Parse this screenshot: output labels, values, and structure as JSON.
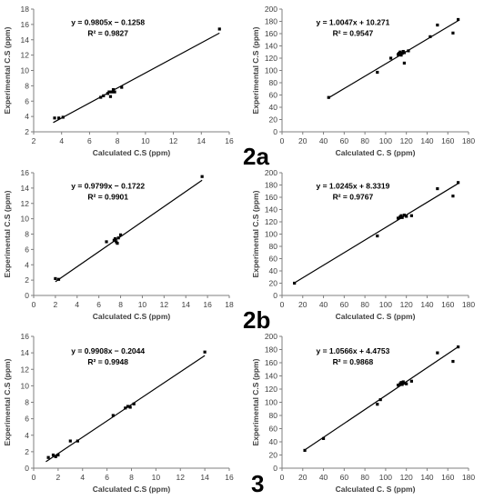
{
  "panel_labels": [
    "2a",
    "2b",
    "3"
  ],
  "chart_data": [
    {
      "type": "scatter",
      "title": "",
      "xlabel": "Calculated C.S (ppm)",
      "ylabel": "Experimental C.S (ppm)",
      "xlim": [
        2,
        16
      ],
      "ylim": [
        2,
        18
      ],
      "xticks": [
        2,
        4,
        6,
        8,
        10,
        12,
        14,
        16
      ],
      "yticks": [
        2,
        4,
        6,
        8,
        10,
        12,
        14,
        16,
        18
      ],
      "equation": "y = 0.9805x − 0.1258",
      "r2": "R² = 0.9827",
      "fit": {
        "slope": 0.9805,
        "intercept": -0.1258,
        "x_range": [
          3.4,
          15.3
        ]
      },
      "grid": false,
      "legend": "none",
      "series": [
        {
          "x": [
            3.5,
            3.8,
            4.1,
            6.8,
            7.0,
            7.3,
            7.4,
            7.5,
            7.6,
            7.8,
            7.7,
            8.3,
            15.3
          ],
          "y": [
            3.8,
            3.8,
            3.9,
            6.5,
            6.7,
            7.0,
            7.2,
            6.6,
            7.2,
            7.2,
            7.5,
            7.8,
            15.4
          ]
        }
      ]
    },
    {
      "type": "scatter",
      "title": "",
      "xlabel": "Calculated C. S (ppm)",
      "ylabel": "Experimental C.S (ppm)",
      "xlim": [
        0,
        180
      ],
      "ylim": [
        0,
        200
      ],
      "xticks": [
        0,
        20,
        40,
        60,
        80,
        100,
        120,
        140,
        160,
        180
      ],
      "yticks": [
        0,
        20,
        40,
        60,
        80,
        100,
        120,
        140,
        160,
        180,
        200
      ],
      "equation": "y = 1.0047x + 10.271",
      "r2": "R² = 0.9547",
      "fit": {
        "slope": 1.0047,
        "intercept": 10.271,
        "x_range": [
          45,
          170
        ]
      },
      "grid": false,
      "legend": "none",
      "series": [
        {
          "x": [
            45,
            92,
            105,
            112,
            113,
            114,
            115,
            116,
            117,
            118,
            118,
            122,
            143,
            150,
            165,
            170
          ],
          "y": [
            56,
            97,
            120,
            126,
            128,
            130,
            125,
            128,
            131,
            112,
            129,
            132,
            155,
            174,
            161,
            183
          ]
        }
      ]
    },
    {
      "type": "scatter",
      "title": "",
      "xlabel": "Calculated C.S (ppm)",
      "ylabel": "Experimental C.S (ppm)",
      "xlim": [
        0,
        18
      ],
      "ylim": [
        0,
        16
      ],
      "xticks": [
        0,
        2,
        4,
        6,
        8,
        10,
        12,
        14,
        16,
        18
      ],
      "yticks": [
        0,
        2,
        4,
        6,
        8,
        10,
        12,
        14,
        16
      ],
      "equation": "y = 0.9799x − 0.1722",
      "r2": "R² = 0.9901",
      "fit": {
        "slope": 0.9799,
        "intercept": -0.1722,
        "x_range": [
          2.0,
          15.5
        ]
      },
      "grid": false,
      "legend": "none",
      "series": [
        {
          "x": [
            2.0,
            2.3,
            6.7,
            7.4,
            7.5,
            7.6,
            7.7,
            7.8,
            8.0,
            15.5
          ],
          "y": [
            2.2,
            2.1,
            7.0,
            7.2,
            7.4,
            7.0,
            6.8,
            7.5,
            7.9,
            15.5
          ]
        }
      ]
    },
    {
      "type": "scatter",
      "title": "",
      "xlabel": "Calculated C. S (ppm)",
      "ylabel": "Experimental C.S (ppm)",
      "xlim": [
        0,
        180
      ],
      "ylim": [
        0,
        200
      ],
      "xticks": [
        0,
        20,
        40,
        60,
        80,
        100,
        120,
        140,
        160,
        180
      ],
      "yticks": [
        0,
        20,
        40,
        60,
        80,
        100,
        120,
        140,
        160,
        180,
        200
      ],
      "equation": "y = 1.0245x + 8.3319",
      "r2": "R² = 0.9767",
      "fit": {
        "slope": 1.0245,
        "intercept": 8.3319,
        "x_range": [
          12,
          170
        ]
      },
      "grid": false,
      "legend": "none",
      "series": [
        {
          "x": [
            12,
            92,
            112,
            114,
            115,
            116,
            118,
            120,
            125,
            150,
            165,
            170
          ],
          "y": [
            20,
            97,
            126,
            128,
            130,
            127,
            131,
            129,
            130,
            174,
            162,
            184
          ]
        }
      ]
    },
    {
      "type": "scatter",
      "title": "",
      "xlabel": "Calculated C.S (ppm)",
      "ylabel": "Experimental C.S (ppm)",
      "xlim": [
        0,
        16
      ],
      "ylim": [
        0,
        16
      ],
      "xticks": [
        0,
        2,
        4,
        6,
        8,
        10,
        12,
        14,
        16
      ],
      "yticks": [
        0,
        2,
        4,
        6,
        8,
        10,
        12,
        14,
        16
      ],
      "equation": "y = 0.9908x − 0.2044",
      "r2": "R² = 0.9948",
      "fit": {
        "slope": 0.9908,
        "intercept": -0.2044,
        "x_range": [
          1.0,
          14.0
        ]
      },
      "grid": false,
      "legend": "none",
      "series": [
        {
          "x": [
            1.2,
            1.6,
            1.8,
            2.0,
            3.0,
            3.6,
            6.5,
            7.5,
            7.7,
            7.9,
            8.2,
            14.0
          ],
          "y": [
            1.3,
            1.6,
            1.4,
            1.6,
            3.3,
            3.3,
            6.4,
            7.3,
            7.5,
            7.4,
            7.8,
            14.1
          ]
        }
      ]
    },
    {
      "type": "scatter",
      "title": "",
      "xlabel": "Calculated C. S (ppm)",
      "ylabel": "Experimental C.S (ppm)",
      "xlim": [
        0,
        180
      ],
      "ylim": [
        0,
        200
      ],
      "xticks": [
        0,
        20,
        40,
        60,
        80,
        100,
        120,
        140,
        160,
        180
      ],
      "yticks": [
        0,
        20,
        40,
        60,
        80,
        100,
        120,
        140,
        160,
        180,
        200
      ],
      "equation": "y = 1.0566x + 4.4753",
      "r2": "R² = 0.9868",
      "fit": {
        "slope": 1.0566,
        "intercept": 4.4753,
        "x_range": [
          22,
          170
        ]
      },
      "grid": false,
      "legend": "none",
      "series": [
        {
          "x": [
            22,
            40,
            92,
            95,
            112,
            114,
            115,
            116,
            117,
            118,
            120,
            125,
            150,
            165,
            170
          ],
          "y": [
            27,
            45,
            97,
            104,
            126,
            128,
            130,
            127,
            131,
            129,
            128,
            132,
            175,
            162,
            184
          ]
        }
      ]
    }
  ]
}
